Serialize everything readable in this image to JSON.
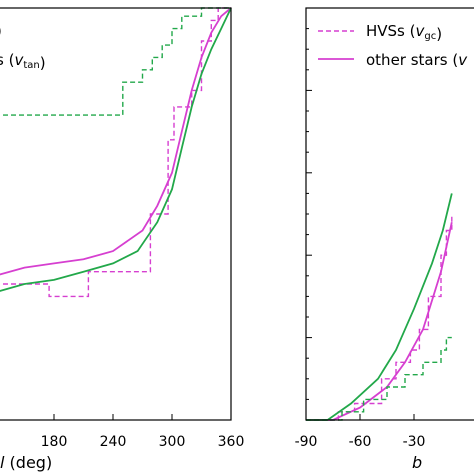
{
  "colors": {
    "hvs": "#d63fd0",
    "other": "#22a84a",
    "axis": "#000000"
  },
  "chart_data": [
    {
      "type": "line",
      "xlabel_var": "l",
      "xlabel_unit": "(deg)",
      "xlim": [
        120,
        360
      ],
      "ylim": [
        0,
        1
      ],
      "xticks": [
        180,
        240,
        300,
        360
      ],
      "tick_labels": [
        "180",
        "240",
        "300",
        "360"
      ],
      "legend": {
        "placement": "top-left (cropped)",
        "entries": [
          {
            "style": "dashed",
            "text": "",
            "sub": "tan"
          },
          {
            "style": "solid",
            "text": "s (",
            "var": "v",
            "sub": "tan",
            "close": ")"
          }
        ]
      },
      "series": [
        {
          "style": "dashed",
          "color": "hvs",
          "points": [
            [
              120,
              0.33
            ],
            [
              175,
              0.33
            ],
            [
              175,
              0.3
            ],
            [
              215,
              0.3
            ],
            [
              215,
              0.36
            ],
            [
              278,
              0.36
            ],
            [
              278,
              0.5
            ],
            [
              296,
              0.5
            ],
            [
              296,
              0.68
            ],
            [
              302,
              0.68
            ],
            [
              302,
              0.76
            ],
            [
              320,
              0.76
            ],
            [
              320,
              0.8
            ],
            [
              330,
              0.8
            ],
            [
              330,
              0.92
            ],
            [
              340,
              0.92
            ],
            [
              340,
              0.97
            ],
            [
              347,
              0.97
            ],
            [
              347,
              1.0
            ],
            [
              360,
              1.0
            ]
          ]
        },
        {
          "style": "solid",
          "color": "hvs",
          "points": [
            [
              120,
              0.35
            ],
            [
              150,
              0.37
            ],
            [
              180,
              0.38
            ],
            [
              210,
              0.39
            ],
            [
              240,
              0.41
            ],
            [
              270,
              0.46
            ],
            [
              285,
              0.52
            ],
            [
              300,
              0.6
            ],
            [
              310,
              0.7
            ],
            [
              320,
              0.8
            ],
            [
              330,
              0.88
            ],
            [
              340,
              0.94
            ],
            [
              350,
              0.98
            ],
            [
              360,
              1.0
            ]
          ]
        },
        {
          "style": "dashed",
          "color": "other",
          "points": [
            [
              120,
              0.74
            ],
            [
              250,
              0.74
            ],
            [
              250,
              0.82
            ],
            [
              270,
              0.82
            ],
            [
              270,
              0.85
            ],
            [
              280,
              0.85
            ],
            [
              280,
              0.88
            ],
            [
              290,
              0.88
            ],
            [
              290,
              0.91
            ],
            [
              300,
              0.91
            ],
            [
              300,
              0.95
            ],
            [
              310,
              0.95
            ],
            [
              310,
              0.98
            ],
            [
              330,
              0.98
            ],
            [
              330,
              1.0
            ],
            [
              360,
              1.0
            ]
          ]
        },
        {
          "style": "solid",
          "color": "other",
          "points": [
            [
              120,
              0.31
            ],
            [
              150,
              0.33
            ],
            [
              180,
              0.34
            ],
            [
              210,
              0.36
            ],
            [
              240,
              0.38
            ],
            [
              265,
              0.41
            ],
            [
              285,
              0.48
            ],
            [
              300,
              0.56
            ],
            [
              310,
              0.66
            ],
            [
              320,
              0.76
            ],
            [
              330,
              0.84
            ],
            [
              340,
              0.9
            ],
            [
              350,
              0.95
            ],
            [
              360,
              1.0
            ]
          ]
        }
      ]
    },
    {
      "type": "line",
      "xlabel_var": "b",
      "xlim": [
        -90,
        10
      ],
      "ylim": [
        0,
        1
      ],
      "xticks": [
        -90,
        -60,
        -30
      ],
      "tick_labels": [
        "-90",
        "-60",
        "-30"
      ],
      "legend": {
        "placement": "top-left",
        "entries": [
          {
            "style": "dashed",
            "text": "HVSs (",
            "var": "v",
            "sub": "gc",
            "close": ")"
          },
          {
            "style": "solid",
            "text": "other stars (",
            "var": "v",
            "sub": "",
            "close": ""
          }
        ]
      },
      "series": [
        {
          "style": "dashed",
          "color": "hvs",
          "points": [
            [
              -90,
              0.0
            ],
            [
              -72,
              0.0
            ],
            [
              -72,
              0.02
            ],
            [
              -63,
              0.02
            ],
            [
              -63,
              0.04
            ],
            [
              -48,
              0.04
            ],
            [
              -48,
              0.1
            ],
            [
              -40,
              0.1
            ],
            [
              -40,
              0.14
            ],
            [
              -32,
              0.14
            ],
            [
              -32,
              0.17
            ],
            [
              -27,
              0.17
            ],
            [
              -27,
              0.22
            ],
            [
              -22,
              0.22
            ],
            [
              -22,
              0.3
            ],
            [
              -15,
              0.3
            ],
            [
              -15,
              0.4
            ],
            [
              -12,
              0.4
            ],
            [
              -12,
              0.46
            ],
            [
              -9,
              0.46
            ],
            [
              -9,
              0.5
            ]
          ]
        },
        {
          "style": "solid",
          "color": "hvs",
          "points": [
            [
              -90,
              0.0
            ],
            [
              -75,
              0.0
            ],
            [
              -60,
              0.03
            ],
            [
              -45,
              0.08
            ],
            [
              -35,
              0.14
            ],
            [
              -25,
              0.22
            ],
            [
              -15,
              0.36
            ],
            [
              -9,
              0.48
            ]
          ]
        },
        {
          "style": "dashed",
          "color": "other",
          "points": [
            [
              -90,
              0.0
            ],
            [
              -70,
              0.0
            ],
            [
              -70,
              0.02
            ],
            [
              -58,
              0.02
            ],
            [
              -58,
              0.05
            ],
            [
              -45,
              0.05
            ],
            [
              -45,
              0.08
            ],
            [
              -35,
              0.08
            ],
            [
              -35,
              0.11
            ],
            [
              -25,
              0.11
            ],
            [
              -25,
              0.14
            ],
            [
              -15,
              0.14
            ],
            [
              -15,
              0.17
            ],
            [
              -12,
              0.17
            ],
            [
              -12,
              0.2
            ],
            [
              -9,
              0.2
            ]
          ]
        },
        {
          "style": "solid",
          "color": "other",
          "points": [
            [
              -90,
              0.0
            ],
            [
              -78,
              0.0
            ],
            [
              -65,
              0.04
            ],
            [
              -50,
              0.1
            ],
            [
              -40,
              0.17
            ],
            [
              -30,
              0.27
            ],
            [
              -20,
              0.38
            ],
            [
              -14,
              0.46
            ],
            [
              -9,
              0.55
            ]
          ]
        }
      ]
    }
  ]
}
